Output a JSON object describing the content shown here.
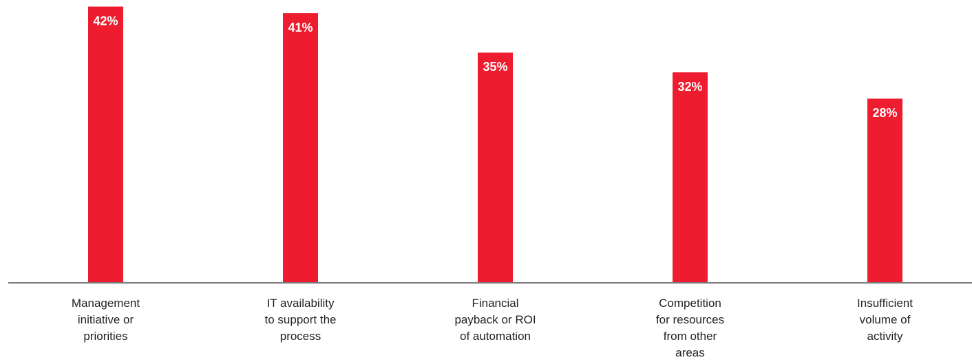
{
  "chart_data": {
    "type": "bar",
    "categories": [
      "Management\ninitiative or\npriorities",
      "IT availability\nto support the\nprocess",
      "Financial\npayback or ROI\nof automation",
      "Competition\nfor resources\nfrom other\nareas",
      "Insufficient\nvolume of\nactivity"
    ],
    "values": [
      42,
      41,
      35,
      32,
      28
    ],
    "value_labels": [
      "42%",
      "41%",
      "35%",
      "32%",
      "28%"
    ],
    "color": "#ed1c2e",
    "ylim": [
      0,
      43
    ]
  }
}
